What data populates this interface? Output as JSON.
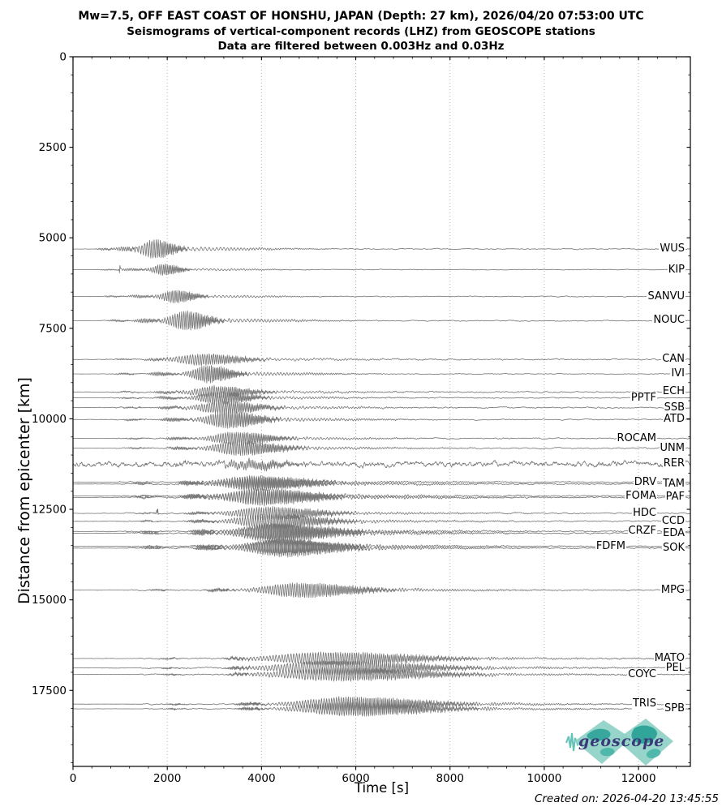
{
  "title": {
    "line1": "Mw=7.5, OFF EAST COAST OF HONSHU, JAPAN (Depth: 27 km), 2026/04/20 07:53:00 UTC",
    "line2": "Seismograms of vertical-component records (LHZ) from GEOSCOPE stations",
    "line3": "Data are filtered between 0.003Hz and 0.03Hz"
  },
  "footer": {
    "created_on": "Created on: 2026-04-20 13:45:55"
  },
  "logo": {
    "text": "geoscope",
    "teal_light": "#8ed1c6",
    "teal_mid": "#52bcae",
    "teal_dark": "#27a096",
    "text_color": "#3a3a78"
  },
  "chart_data": {
    "type": "line",
    "subtype": "seismogram-record-section",
    "title": "Mw=7.5, OFF EAST COAST OF HONSHU, JAPAN (Depth: 27 km), 2026/04/20 07:53:00 UTC",
    "xlabel": "Time [s]",
    "ylabel": "Distance from epicenter [km]",
    "xlim": [
      0,
      13100
    ],
    "ylim": [
      0,
      19600
    ],
    "y_inverted_down": true,
    "x_ticks": [
      0,
      2000,
      4000,
      6000,
      8000,
      10000,
      12000
    ],
    "y_ticks": [
      0,
      2500,
      5000,
      7500,
      10000,
      12500,
      15000,
      17500
    ],
    "x_minor_step": 400,
    "y_minor_step": 500,
    "grid": "vertical dotted lines at x major ticks only",
    "legend": "none",
    "colors": {
      "trace": "#767676",
      "grid": "#b3b3b3",
      "axis": "#000000"
    },
    "stations": [
      {
        "name": "WUS",
        "distance_km": 5310,
        "label_col": 0,
        "rel_amp": 12,
        "noise_level": 0.7,
        "train_spread": 1.0,
        "pre": 0.25
      },
      {
        "name": "KIP",
        "distance_km": 5880,
        "label_col": 0,
        "rel_amp": 7,
        "noise_level": 0.5,
        "train_spread": 0.8,
        "pre": 0.25,
        "glitch_t": 1000
      },
      {
        "name": "SANVU",
        "distance_km": 6620,
        "label_col": 0,
        "rel_amp": 8,
        "noise_level": 0.6,
        "train_spread": 0.9,
        "pre": 0.25
      },
      {
        "name": "NOUC",
        "distance_km": 7290,
        "label_col": 0,
        "rel_amp": 12,
        "noise_level": 0.7,
        "train_spread": 1.0,
        "pre": 0.25
      },
      {
        "name": "CAN",
        "distance_km": 8360,
        "label_col": 0,
        "rel_amp": 7,
        "noise_level": 1.0,
        "train_spread": 1.5,
        "pre": 0.3
      },
      {
        "name": "IVI",
        "distance_km": 8760,
        "label_col": 0,
        "rel_amp": 11,
        "noise_level": 0.6,
        "train_spread": 0.9,
        "pre": 0.25
      },
      {
        "name": "ECH",
        "distance_km": 9260,
        "label_col": 0,
        "rel_amp": 7,
        "noise_level": 1.0,
        "train_spread": 1.3,
        "pre": 0.3
      },
      {
        "name": "PPTF",
        "distance_km": 9420,
        "label_col": 1,
        "rel_amp": 8,
        "noise_level": 0.8,
        "train_spread": 1.1,
        "pre": 0.25
      },
      {
        "name": "SSB",
        "distance_km": 9690,
        "label_col": 0,
        "rel_amp": 8,
        "noise_level": 1.0,
        "train_spread": 1.3,
        "pre": 0.3
      },
      {
        "name": "ATD",
        "distance_km": 10020,
        "label_col": 0,
        "rel_amp": 11,
        "noise_level": 0.8,
        "train_spread": 1.1,
        "pre": 0.25
      },
      {
        "name": "ROCAM",
        "distance_km": 10540,
        "label_col": 1,
        "rel_amp": 8,
        "noise_level": 0.8,
        "train_spread": 1.2,
        "pre": 0.25
      },
      {
        "name": "UNM",
        "distance_km": 10810,
        "label_col": 0,
        "rel_amp": 9,
        "noise_level": 0.8,
        "train_spread": 1.3,
        "pre": 0.25
      },
      {
        "name": "RER",
        "distance_km": 11250,
        "label_col": 0,
        "rel_amp": 5,
        "noise_level": 4.0,
        "train_spread": 1.2,
        "pre": 1
      },
      {
        "name": "DRV",
        "distance_km": 11750,
        "label_col": 1,
        "rel_amp": 8,
        "noise_level": 1.0,
        "train_spread": 1.5,
        "pre": 0.3
      },
      {
        "name": "TAM",
        "distance_km": 11800,
        "label_col": 0,
        "rel_amp": 8,
        "noise_level": 1.0,
        "train_spread": 1.5,
        "pre": 0.3
      },
      {
        "name": "FOMA",
        "distance_km": 12130,
        "label_col": 1,
        "rel_amp": 9,
        "noise_level": 1.0,
        "train_spread": 1.5,
        "pre": 0.3
      },
      {
        "name": "PAF",
        "distance_km": 12170,
        "label_col": 0,
        "rel_amp": 10,
        "noise_level": 1.0,
        "train_spread": 1.5,
        "pre": 0.3
      },
      {
        "name": "HDC",
        "distance_km": 12610,
        "label_col": 1,
        "rel_amp": 8,
        "noise_level": 0.9,
        "train_spread": 1.5,
        "pre": 0.3,
        "glitch_t": 1790
      },
      {
        "name": "CCD",
        "distance_km": 12830,
        "label_col": 0,
        "rel_amp": 9,
        "noise_level": 0.9,
        "train_spread": 1.5,
        "pre": 0.3
      },
      {
        "name": "CRZF",
        "distance_km": 13110,
        "label_col": 1,
        "rel_amp": 10,
        "noise_level": 1.0,
        "train_spread": 1.5,
        "pre": 0.3
      },
      {
        "name": "EDA",
        "distance_km": 13160,
        "label_col": 0,
        "rel_amp": 11,
        "noise_level": 1.0,
        "train_spread": 1.5,
        "pre": 0.3
      },
      {
        "name": "FDFM",
        "distance_km": 13520,
        "label_col": 2,
        "rel_amp": 9,
        "noise_level": 0.9,
        "train_spread": 1.4,
        "pre": 0.3
      },
      {
        "name": "SOK",
        "distance_km": 13570,
        "label_col": 0,
        "rel_amp": 11,
        "noise_level": 0.9,
        "train_spread": 1.4,
        "pre": 0.3
      },
      {
        "name": "MPG",
        "distance_km": 14730,
        "label_col": 0,
        "rel_amp": 9,
        "noise_level": 0.8,
        "train_spread": 1.5,
        "pre": 0.25
      },
      {
        "name": "MATO",
        "distance_km": 16620,
        "label_col": 0,
        "rel_amp": 8,
        "noise_level": 0.9,
        "train_spread": 2.1,
        "pre": 0.3
      },
      {
        "name": "PEL",
        "distance_km": 16880,
        "label_col": 0,
        "rel_amp": 9,
        "noise_level": 0.9,
        "train_spread": 2.1,
        "pre": 0.3
      },
      {
        "name": "COYC",
        "distance_km": 17060,
        "label_col": 1,
        "rel_amp": 8,
        "noise_level": 0.9,
        "train_spread": 2.1,
        "pre": 0.3
      },
      {
        "name": "TRIS",
        "distance_km": 17880,
        "label_col": 1,
        "rel_amp": 9,
        "noise_level": 0.8,
        "train_spread": 1.7,
        "pre": 0.25
      },
      {
        "name": "SPB",
        "distance_km": 18010,
        "label_col": 0,
        "rel_amp": 9,
        "noise_level": 0.8,
        "train_spread": 1.7,
        "pre": 0.25
      }
    ]
  }
}
